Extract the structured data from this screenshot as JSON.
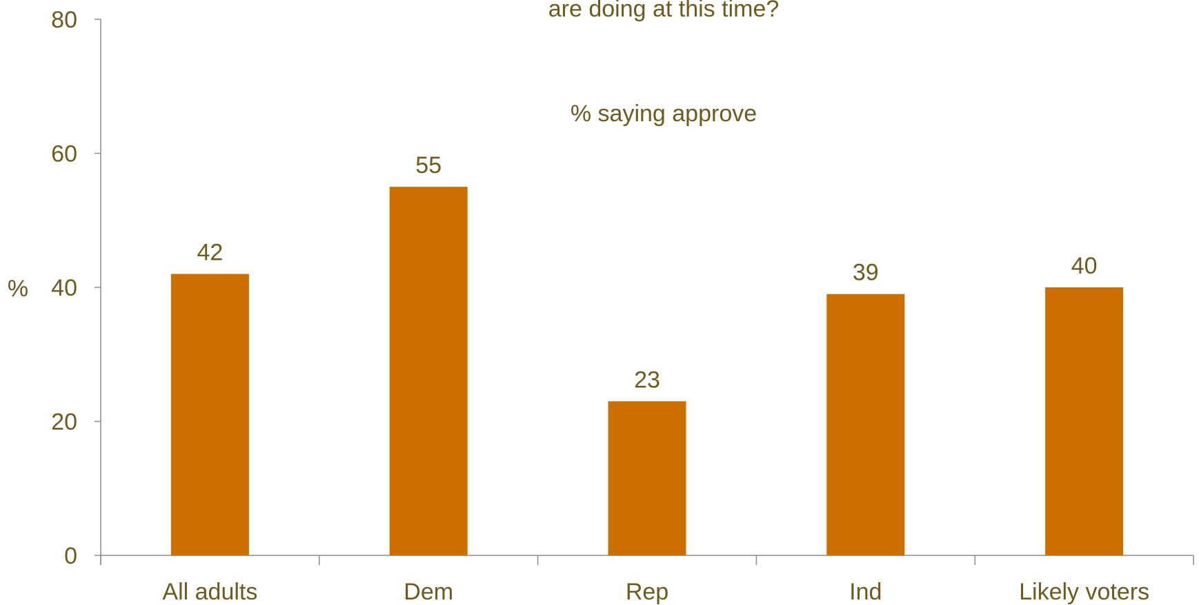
{
  "chart_data": {
    "type": "bar",
    "title": "are doing at this time?",
    "subtitle": "% saying approve",
    "categories": [
      "All adults",
      "Dem",
      "Rep",
      "Ind",
      "Likely voters"
    ],
    "values": [
      42,
      55,
      23,
      39,
      40
    ],
    "data_labels": [
      "42",
      "55",
      "23",
      "39",
      "40"
    ],
    "ylabel": "%",
    "xlabel": "",
    "ylim": [
      0,
      80
    ],
    "yticks": [
      0,
      20,
      40,
      60,
      80
    ],
    "ytick_labels": [
      "0",
      "20",
      "40",
      "60",
      "80"
    ],
    "grid": false,
    "legend": "none",
    "colors": {
      "bar": "#cc6e00",
      "text": "#6e5a1e",
      "axis": "#8c8c8c"
    }
  }
}
